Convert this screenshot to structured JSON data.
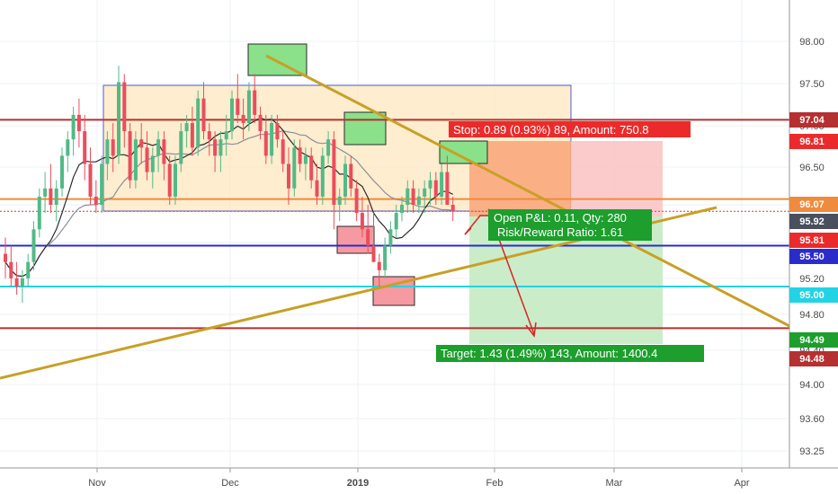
{
  "chart_data": {
    "type": "candlestick",
    "y_range": [
      92.95,
      98.42
    ],
    "y_ticks": [
      "98.00",
      "97.50",
      "97.00",
      "96.50",
      "96.00",
      "95.60",
      "95.20",
      "94.80",
      "94.40",
      "94.00",
      "93.60",
      "93.25"
    ],
    "x_labels": [
      "Nov",
      "Dec",
      "2019",
      "Feb",
      "Mar",
      "Apr"
    ],
    "ohlc": [
      [
        95.4,
        95.6,
        95.1,
        95.3
      ],
      [
        95.3,
        95.5,
        95.0,
        95.1
      ],
      [
        95.1,
        95.3,
        94.9,
        95.0
      ],
      [
        95.0,
        95.2,
        94.8,
        95.1
      ],
      [
        95.1,
        95.4,
        95.0,
        95.3
      ],
      [
        95.3,
        95.8,
        95.2,
        95.7
      ],
      [
        95.7,
        96.2,
        95.6,
        96.1
      ],
      [
        96.1,
        96.4,
        95.9,
        96.2
      ],
      [
        96.2,
        96.5,
        95.9,
        96.0
      ],
      [
        96.0,
        96.3,
        95.8,
        96.2
      ],
      [
        96.2,
        96.7,
        96.1,
        96.6
      ],
      [
        96.6,
        96.9,
        96.4,
        96.8
      ],
      [
        96.8,
        97.2,
        96.6,
        97.1
      ],
      [
        97.1,
        97.3,
        96.7,
        96.9
      ],
      [
        96.9,
        97.1,
        96.3,
        96.5
      ],
      [
        96.5,
        96.7,
        96.0,
        96.1
      ],
      [
        96.1,
        96.3,
        95.9,
        96.0
      ],
      [
        96.0,
        96.6,
        95.9,
        96.5
      ],
      [
        96.5,
        96.9,
        96.3,
        96.8
      ],
      [
        96.8,
        97.0,
        96.4,
        96.6
      ],
      [
        96.6,
        97.7,
        96.5,
        97.5
      ],
      [
        97.5,
        97.6,
        96.7,
        96.9
      ],
      [
        96.9,
        97.0,
        96.2,
        96.3
      ],
      [
        96.3,
        96.9,
        96.2,
        96.8
      ],
      [
        96.8,
        97.0,
        96.5,
        96.7
      ],
      [
        96.7,
        96.9,
        96.3,
        96.4
      ],
      [
        96.4,
        96.7,
        96.2,
        96.6
      ],
      [
        96.6,
        96.9,
        96.4,
        96.8
      ],
      [
        96.8,
        96.9,
        96.3,
        96.5
      ],
      [
        96.5,
        96.6,
        96.0,
        96.1
      ],
      [
        96.1,
        96.6,
        96.0,
        96.5
      ],
      [
        96.5,
        97.0,
        96.4,
        96.9
      ],
      [
        96.9,
        97.1,
        96.7,
        97.0
      ],
      [
        97.0,
        97.2,
        96.6,
        96.7
      ],
      [
        96.7,
        97.4,
        96.6,
        97.3
      ],
      [
        97.3,
        97.5,
        96.8,
        96.9
      ],
      [
        96.9,
        97.0,
        96.6,
        96.8
      ],
      [
        96.8,
        96.9,
        96.4,
        96.6
      ],
      [
        96.6,
        96.9,
        96.4,
        96.8
      ],
      [
        96.8,
        97.1,
        96.6,
        96.9
      ],
      [
        96.9,
        97.4,
        96.8,
        97.3
      ],
      [
        97.3,
        97.6,
        97.0,
        97.1
      ],
      [
        97.1,
        97.3,
        96.8,
        97.0
      ],
      [
        97.0,
        97.5,
        96.9,
        97.4
      ],
      [
        97.4,
        97.6,
        97.0,
        97.1
      ],
      [
        97.1,
        97.2,
        96.8,
        96.9
      ],
      [
        96.9,
        97.1,
        96.5,
        96.6
      ],
      [
        96.6,
        97.1,
        96.5,
        97.0
      ],
      [
        97.0,
        97.1,
        96.7,
        96.8
      ],
      [
        96.8,
        96.9,
        96.4,
        96.5
      ],
      [
        96.5,
        96.7,
        96.0,
        96.2
      ],
      [
        96.2,
        96.8,
        96.1,
        96.7
      ],
      [
        96.7,
        96.8,
        96.4,
        96.5
      ],
      [
        96.5,
        96.7,
        96.3,
        96.6
      ],
      [
        96.6,
        96.7,
        96.2,
        96.3
      ],
      [
        96.3,
        96.5,
        96.0,
        96.1
      ],
      [
        96.1,
        96.7,
        96.0,
        96.6
      ],
      [
        96.6,
        96.9,
        96.5,
        96.8
      ],
      [
        96.8,
        96.9,
        95.7,
        96.0
      ],
      [
        96.0,
        96.2,
        95.8,
        96.1
      ],
      [
        96.1,
        96.6,
        96.0,
        96.5
      ],
      [
        96.5,
        96.6,
        96.1,
        96.2
      ],
      [
        96.2,
        96.3,
        95.8,
        95.9
      ],
      [
        95.9,
        96.1,
        95.6,
        95.7
      ],
      [
        95.7,
        96.0,
        95.4,
        95.5
      ],
      [
        95.5,
        95.9,
        95.3,
        95.3
      ],
      [
        95.3,
        95.4,
        95.0,
        95.2
      ],
      [
        95.2,
        95.6,
        95.1,
        95.5
      ],
      [
        95.5,
        95.8,
        95.4,
        95.7
      ],
      [
        95.7,
        96.0,
        95.6,
        95.9
      ],
      [
        95.9,
        96.1,
        95.8,
        96.0
      ],
      [
        96.0,
        96.3,
        95.9,
        96.2
      ],
      [
        96.2,
        96.3,
        95.9,
        96.0
      ],
      [
        96.0,
        96.2,
        95.9,
        96.1
      ],
      [
        96.1,
        96.3,
        95.9,
        96.2
      ],
      [
        96.2,
        96.4,
        96.0,
        96.3
      ],
      [
        96.3,
        96.4,
        96.0,
        96.1
      ],
      [
        96.1,
        96.5,
        96.0,
        96.4
      ],
      [
        96.4,
        96.6,
        96.0,
        96.0
      ],
      [
        96.0,
        96.1,
        95.8,
        95.92
      ]
    ],
    "levels": [
      {
        "value": 97.04,
        "label": "97.04"
      },
      {
        "value": 96.81,
        "label": "96.81"
      },
      {
        "value": 96.07,
        "label": "96.07"
      },
      {
        "value": 95.92,
        "label": "95.92"
      },
      {
        "value": 95.81,
        "label": "95.81"
      },
      {
        "value": 95.5,
        "label": "95.50"
      },
      {
        "value": 95.0,
        "label": "95.00"
      },
      {
        "value": 94.49,
        "label": "94.49"
      },
      {
        "value": 94.48,
        "label": "94.48"
      }
    ],
    "position": {
      "stop_label": "Stop: 0.89 (0.93%) 89, Amount: 750.8",
      "target_label": "Target: 1.43 (1.49%) 143, Amount: 1400.4",
      "pnl_label": "Open P&L: 0.11, Qty: 280",
      "rr_label": "Risk/Reward Ratio: 1.61"
    },
    "colors": {
      "up": "#53b987",
      "down": "#eb4d5c",
      "sma_short": "#2b2b2b",
      "sma_long": "#8b8e9a",
      "trendline": "#c8a027",
      "stop": "#eb4d5c",
      "target": "#2e9e3a",
      "support_blue": "#2b2bcc",
      "support_cyan": "#22d3e6",
      "resistance": "#b53030",
      "level_orange": "#f08a3c"
    }
  }
}
